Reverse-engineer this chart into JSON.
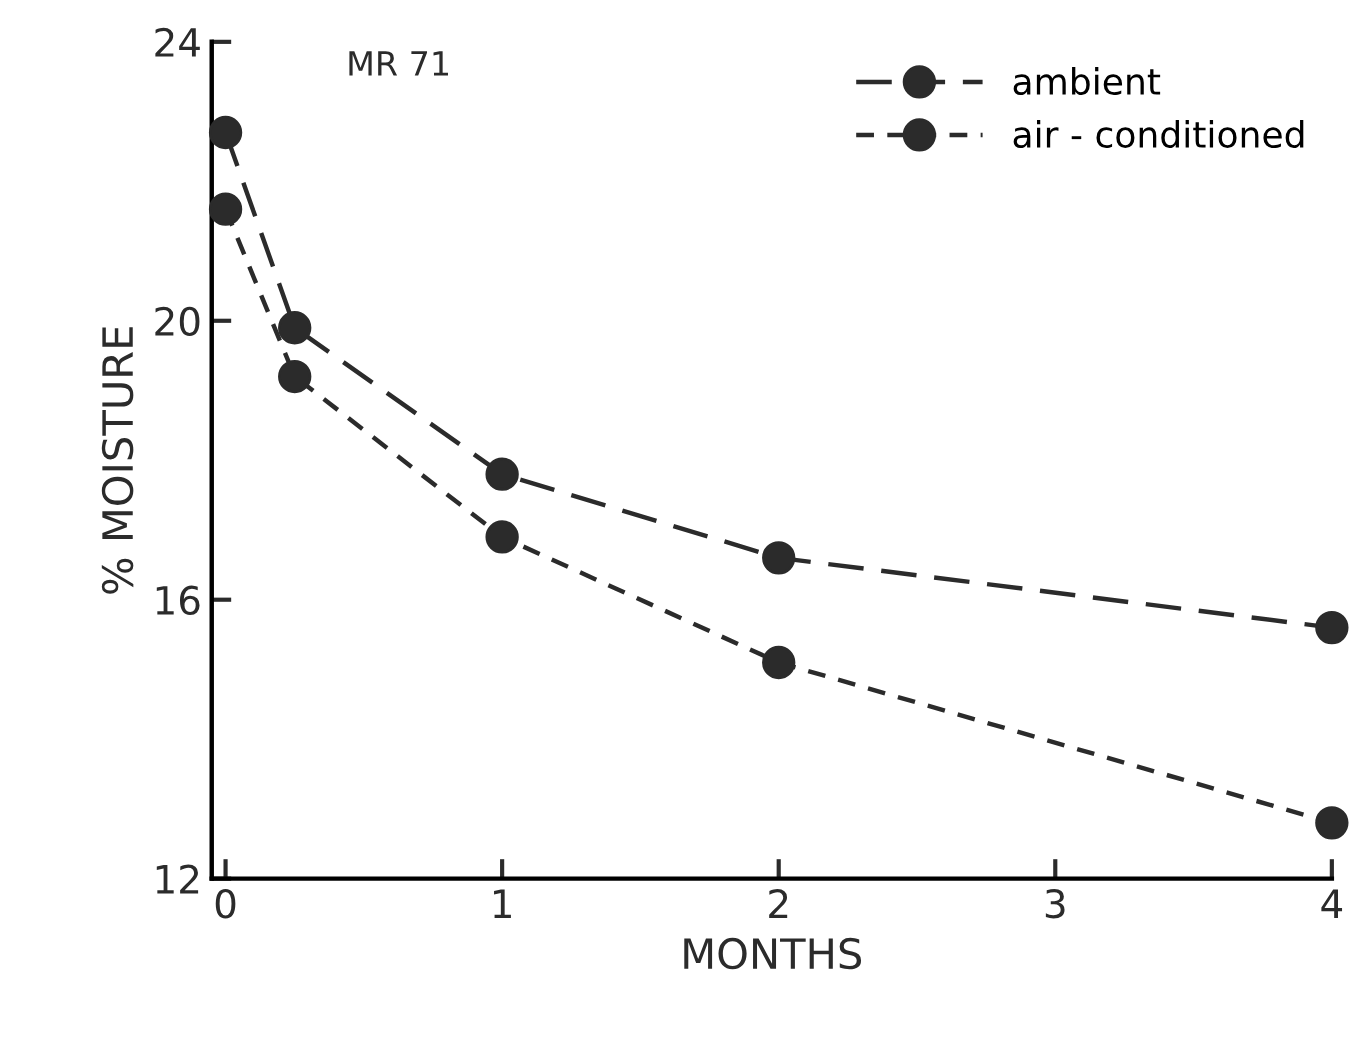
{
  "chart_data": {
    "type": "line",
    "xlabel": "MONTHS",
    "ylabel": "% MOISTURE",
    "annotations": [
      "MR 71"
    ],
    "x": [
      0,
      0.25,
      1,
      2,
      4
    ],
    "series": [
      {
        "name": "ambient",
        "color": "#2b2b2b",
        "line_style": "dashed",
        "values": [
          22.7,
          19.9,
          17.8,
          16.6,
          15.6
        ]
      },
      {
        "name": "air - conditioned",
        "color": "#2b2b2b",
        "line_style": "dotted",
        "values": [
          21.6,
          19.2,
          16.9,
          15.1,
          12.8
        ]
      }
    ],
    "marker": "circle",
    "xlim": [
      -0.05,
      4
    ],
    "xticks": [
      0,
      1,
      2,
      3,
      4
    ],
    "ylim": [
      12,
      24
    ],
    "yticks": [
      12,
      16,
      20,
      24
    ],
    "grid": false,
    "legend": "top right"
  }
}
